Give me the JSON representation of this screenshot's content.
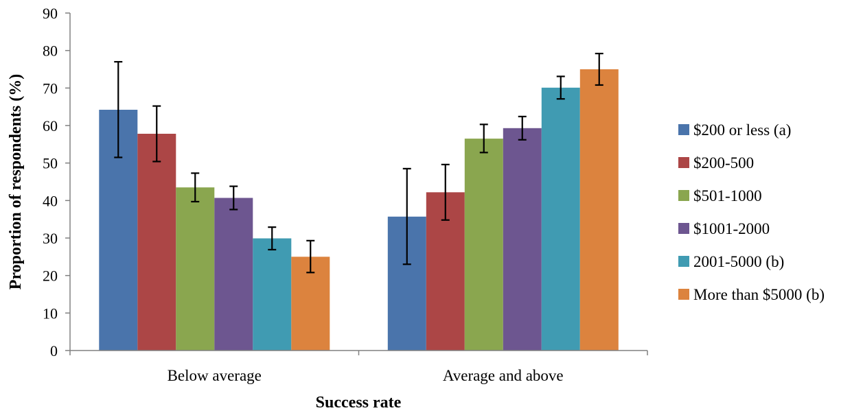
{
  "chart_data": {
    "type": "bar",
    "title": "",
    "xlabel": "Success rate",
    "ylabel": "Proportion of respondents (%)",
    "categories": [
      "Below average",
      "Average and above"
    ],
    "ylim": [
      0,
      90
    ],
    "yticks": [
      0,
      10,
      20,
      30,
      40,
      50,
      60,
      70,
      80,
      90
    ],
    "grid": false,
    "legend_position": "right",
    "error_bars": true,
    "series": [
      {
        "name": "$200 or less (a)",
        "color": "#4a74ab",
        "values": [
          64.2,
          35.7
        ],
        "error_low": [
          51.5,
          23.0
        ],
        "error_high": [
          77.0,
          48.5
        ]
      },
      {
        "name": "$200-500",
        "color": "#ac4646",
        "values": [
          57.8,
          42.2
        ],
        "error_low": [
          50.4,
          34.8
        ],
        "error_high": [
          65.2,
          49.6
        ]
      },
      {
        "name": "$501-1000",
        "color": "#8aa64f",
        "values": [
          43.5,
          56.5
        ],
        "error_low": [
          39.7,
          52.8
        ],
        "error_high": [
          47.3,
          60.3
        ]
      },
      {
        "name": "$1001-2000",
        "color": "#6d5690",
        "values": [
          40.7,
          59.3
        ],
        "error_low": [
          37.6,
          56.2
        ],
        "error_high": [
          43.8,
          62.4
        ]
      },
      {
        "name": "2001-5000 (b)",
        "color": "#409bb2",
        "values": [
          29.9,
          70.1
        ],
        "error_low": [
          26.9,
          67.1
        ],
        "error_high": [
          32.9,
          73.1
        ]
      },
      {
        "name": "More than $5000 (b)",
        "color": "#dc833e",
        "values": [
          25.0,
          75.0
        ],
        "error_low": [
          20.8,
          70.8
        ],
        "error_high": [
          29.3,
          79.2
        ]
      }
    ]
  }
}
